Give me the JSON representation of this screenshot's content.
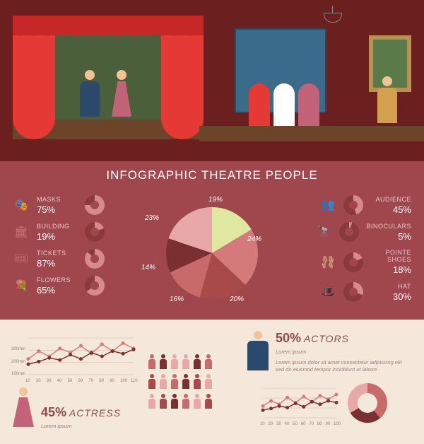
{
  "title": "Infographic Theatre People",
  "colors": {
    "scene_bg": "#6b1f1f",
    "stats_bg": "#a0474e",
    "bottom_bg": "#f4e8db",
    "text_light": "#e8c8c8",
    "text_dark": "#8a4a4a",
    "accent": "#e53935"
  },
  "left_stats": [
    {
      "icon": "masks",
      "label": "Masks",
      "value": "75%",
      "pct": 75,
      "colors": [
        "#d88a8a",
        "#8a3a3a"
      ]
    },
    {
      "icon": "building",
      "label": "Building",
      "value": "19%",
      "pct": 19,
      "colors": [
        "#d88a8a",
        "#8a3a3a"
      ]
    },
    {
      "icon": "tickets",
      "label": "Tickets",
      "value": "87%",
      "pct": 87,
      "colors": [
        "#d88a8a",
        "#8a3a3a"
      ]
    },
    {
      "icon": "flowers",
      "label": "Flowers",
      "value": "65%",
      "pct": 65,
      "colors": [
        "#d88a8a",
        "#8a3a3a"
      ]
    }
  ],
  "right_stats": [
    {
      "icon": "audience",
      "label": "Audience",
      "value": "45%",
      "pct": 45,
      "colors": [
        "#d88a8a",
        "#8a3a3a"
      ]
    },
    {
      "icon": "binoculars",
      "label": "Binoculars",
      "value": "5%",
      "pct": 5,
      "colors": [
        "#d88a8a",
        "#8a3a3a"
      ]
    },
    {
      "icon": "pointe",
      "label": "Pointe Shoes",
      "value": "18%",
      "pct": 18,
      "colors": [
        "#d88a8a",
        "#8a3a3a"
      ]
    },
    {
      "icon": "hat",
      "label": "Hat",
      "value": "30%",
      "pct": 30,
      "colors": [
        "#d88a8a",
        "#8a3a3a"
      ]
    }
  ],
  "center_pie": {
    "slices": [
      {
        "label": "19%",
        "value": 19,
        "color": "#dfe8a0"
      },
      {
        "label": "24%",
        "value": 24,
        "color": "#d47a7a"
      },
      {
        "label": "20%",
        "value": 20,
        "color": "#a84a4a"
      },
      {
        "label": "16%",
        "value": 16,
        "color": "#c86a6a"
      },
      {
        "label": "14%",
        "value": 14,
        "color": "#7a3030"
      },
      {
        "label": "23%",
        "value": 23,
        "color": "#e8a8a8"
      }
    ]
  },
  "icons": {
    "masks": "🎭",
    "building": "🏛",
    "tickets": "🎟",
    "flowers": "💐",
    "audience": "👥",
    "binoculars": "🔭",
    "pointe": "🩰",
    "hat": "🎩"
  },
  "bottom": {
    "actress": {
      "pct": "45%",
      "label": "Actress",
      "text": "Lorem ipsum"
    },
    "actors": {
      "pct": "50%",
      "label": "Actors",
      "text": "Lorem ipsum",
      "desc": "Lorem ipsum dolor sit amet consectetur adipiscing elit sed do eiusmod tempor incididunt ut labore"
    },
    "line1": {
      "x": [
        10,
        20,
        30,
        40,
        50,
        60,
        70,
        80,
        90,
        100,
        110
      ],
      "y_labels": [
        "100mm",
        "200mm",
        "300mm"
      ],
      "series": [
        {
          "color": "#d47a7a",
          "points": [
            30,
            45,
            35,
            50,
            42,
            55,
            40,
            58,
            45,
            60,
            50
          ]
        },
        {
          "color": "#7a3030",
          "points": [
            20,
            25,
            32,
            28,
            38,
            30,
            42,
            35,
            45,
            40,
            48
          ]
        }
      ]
    },
    "pictograms": {
      "rows": 3,
      "cols": 6,
      "matrix": [
        [
          "#c86a6a",
          "#7a3030",
          "#e8a8a8",
          "#e8a8a8",
          "#7a3030",
          "#c86a6a"
        ],
        [
          "#a84a4a",
          "#e8a8a8",
          "#c86a6a",
          "#7a3030",
          "#a84a4a",
          "#e8a8a8"
        ],
        [
          "#e8a8a8",
          "#a84a4a",
          "#7a3030",
          "#c86a6a",
          "#e8a8a8",
          "#a84a4a"
        ]
      ]
    },
    "line2": {
      "x": [
        10,
        20,
        30,
        40,
        50,
        60,
        70,
        80,
        90,
        100
      ],
      "series": [
        {
          "color": "#d47a7a",
          "points": [
            28,
            40,
            32,
            48,
            36,
            50,
            38,
            52,
            44,
            55
          ]
        },
        {
          "color": "#7a3030",
          "points": [
            18,
            22,
            28,
            24,
            34,
            26,
            38,
            32,
            40,
            36
          ]
        }
      ]
    },
    "big_donut": {
      "pct": 62,
      "colors": [
        "#c86a6a",
        "#7a3030",
        "#e8a8a8"
      ]
    }
  }
}
